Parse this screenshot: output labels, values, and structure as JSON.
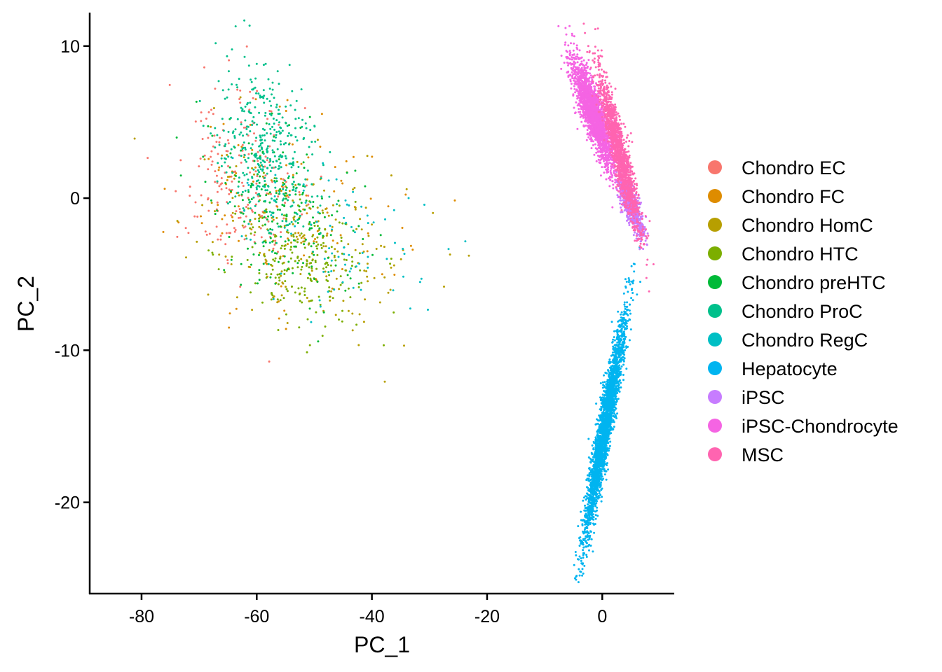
{
  "chart_data": {
    "type": "scatter",
    "title": "",
    "xlabel": "PC_1",
    "ylabel": "PC_2",
    "xlim": [
      -89,
      12.5
    ],
    "ylim": [
      -26,
      12.2
    ],
    "xticks": [
      -80,
      -60,
      -40,
      -20,
      0
    ],
    "yticks": [
      10,
      0,
      -10,
      -20
    ],
    "grid": false,
    "legend_position": "right",
    "series": [
      {
        "name": "Chondro EC",
        "color": "#F8766D",
        "center": [
          -63,
          1
        ],
        "spread": [
          5.5,
          3.2
        ],
        "n": 200,
        "corr": -0.2
      },
      {
        "name": "Chondro FC",
        "color": "#DE8C00",
        "center": [
          -55,
          -1
        ],
        "spread": [
          10,
          3.5
        ],
        "n": 120,
        "corr": -0.25
      },
      {
        "name": "Chondro HomC",
        "color": "#B79F00",
        "center": [
          -52,
          -3
        ],
        "spread": [
          9,
          3
        ],
        "n": 200,
        "corr": -0.35
      },
      {
        "name": "Chondro HTC",
        "color": "#7CAE00",
        "center": [
          -52,
          -4.5
        ],
        "spread": [
          6,
          2.2
        ],
        "n": 200,
        "corr": -0.2
      },
      {
        "name": "Chondro preHTC",
        "color": "#00BA38",
        "center": [
          -56,
          -1
        ],
        "spread": [
          6,
          3
        ],
        "n": 200,
        "corr": -0.3
      },
      {
        "name": "Chondro ProC",
        "color": "#00C08B",
        "center": [
          -58,
          3
        ],
        "spread": [
          4.5,
          2.8
        ],
        "n": 400,
        "corr": -0.4
      },
      {
        "name": "Chondro RegC",
        "color": "#00BFC4",
        "center": [
          -47,
          -2.5
        ],
        "spread": [
          8,
          2.5
        ],
        "n": 80,
        "corr": -0.3
      },
      {
        "name": "Hepatocyte",
        "color": "#00B4F0",
        "center": [
          0.5,
          -15
        ],
        "spread": [
          1.8,
          3.6
        ],
        "n": 2800,
        "corr": 0.94
      },
      {
        "name": "iPSC",
        "color": "#C77CFF",
        "center": [
          5,
          -0.5
        ],
        "spread": [
          1.1,
          1.0
        ],
        "n": 600,
        "corr": -0.8
      },
      {
        "name": "iPSC-Chondrocyte",
        "color": "#F564E3",
        "center": [
          -1.5,
          5.5
        ],
        "spread": [
          1.8,
          1.8
        ],
        "n": 2000,
        "corr": -0.85
      },
      {
        "name": "MSC",
        "color": "#FF64B0",
        "center": [
          3,
          3
        ],
        "spread": [
          1.8,
          2.6
        ],
        "n": 1400,
        "corr": -0.92
      }
    ]
  }
}
